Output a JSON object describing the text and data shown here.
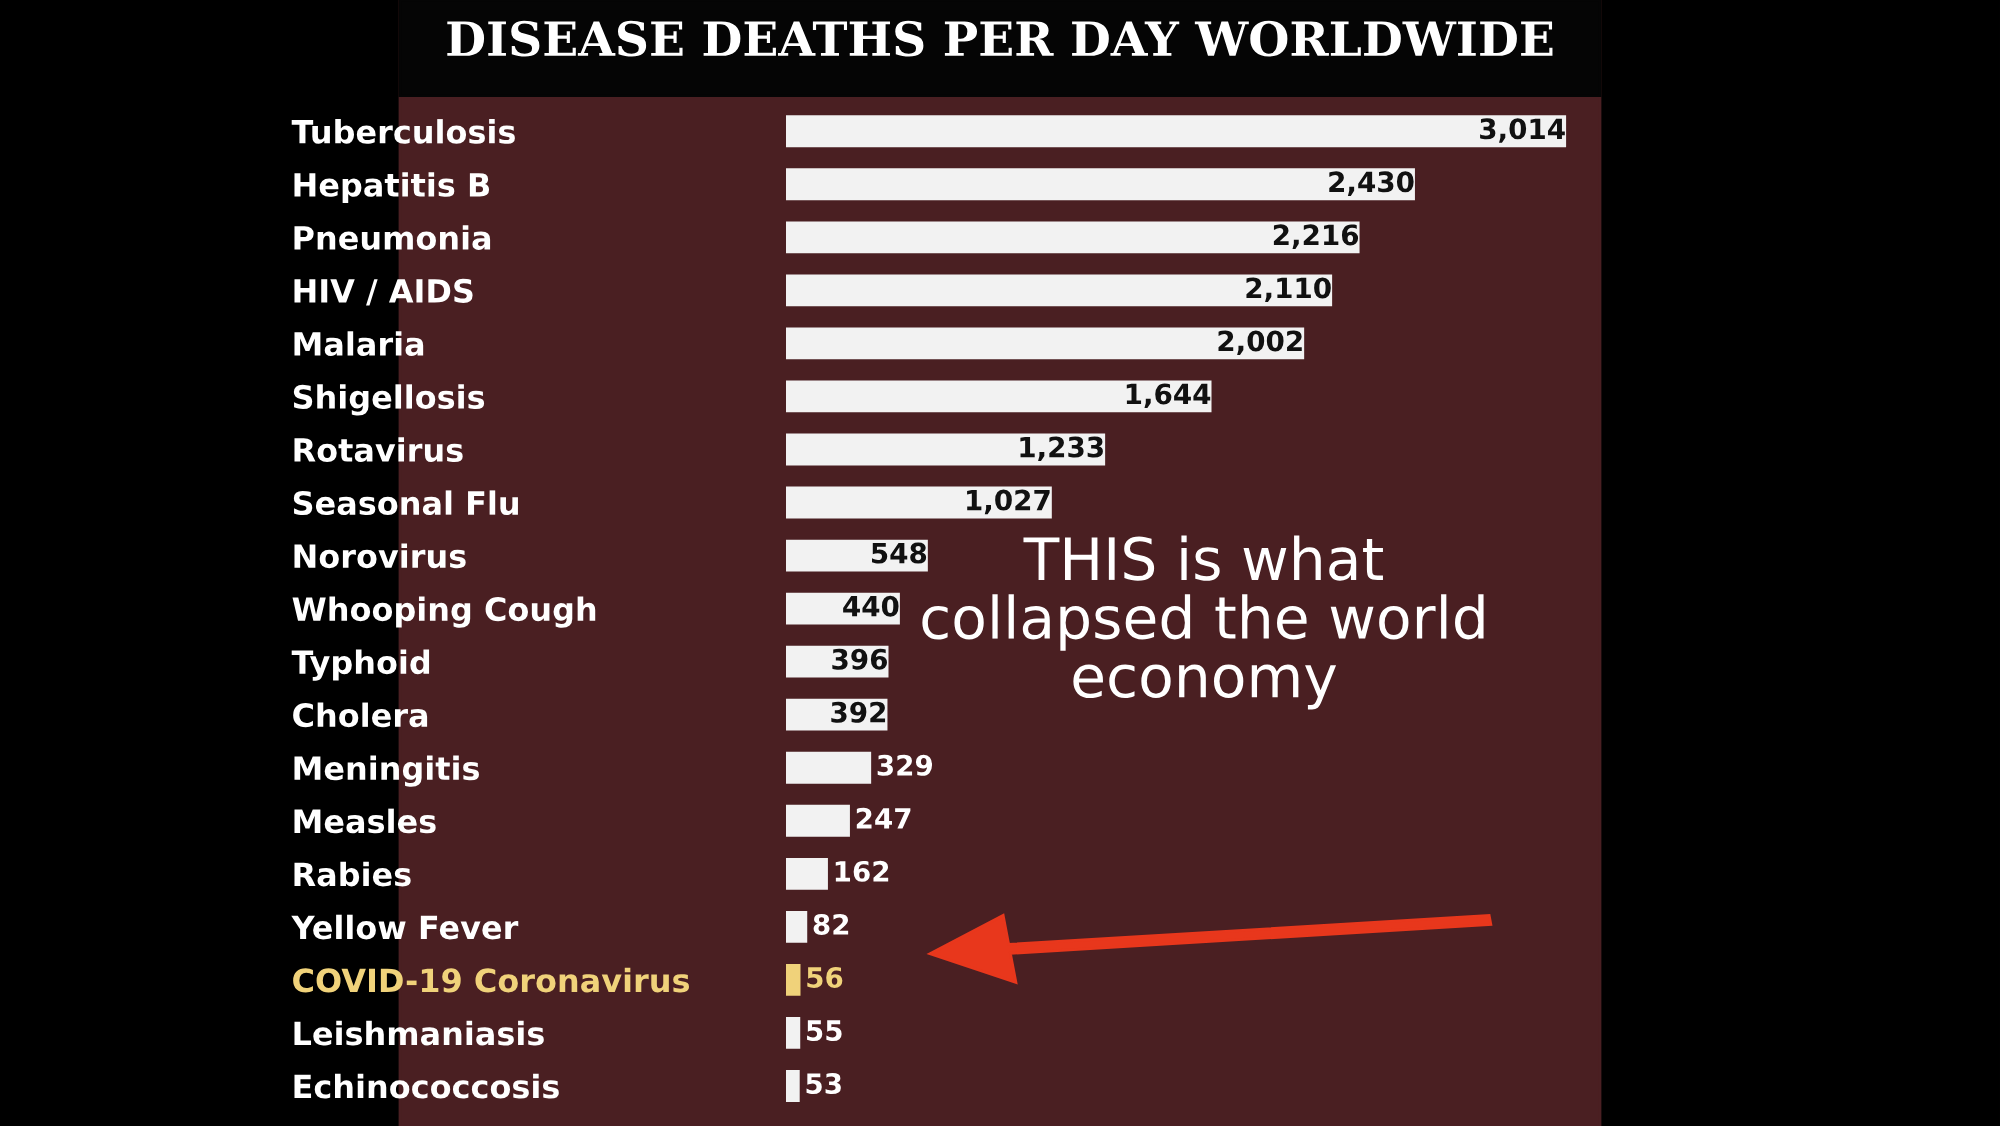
{
  "chart_data": {
    "type": "bar",
    "orientation": "horizontal",
    "title": "DISEASE DEATHS PER DAY WORLDWIDE",
    "categories": [
      "Tuberculosis",
      "Hepatitis B",
      "Pneumonia",
      "HIV / AIDS",
      "Malaria",
      "Shigellosis",
      "Rotavirus",
      "Seasonal Flu",
      "Norovirus",
      "Whooping Cough",
      "Typhoid",
      "Cholera",
      "Meningitis",
      "Measles",
      "Rabies",
      "Yellow Fever",
      "COVID-19 Coronavirus",
      "Leishmaniasis",
      "Echinococcosis"
    ],
    "values": [
      3014,
      2430,
      2216,
      2110,
      2002,
      1644,
      1233,
      1027,
      548,
      440,
      396,
      392,
      329,
      247,
      162,
      82,
      56,
      55,
      53
    ],
    "value_labels": [
      "3,014",
      "2,430",
      "2,216",
      "2,110",
      "2,002",
      "1,644",
      "1,233",
      "1,027",
      "548",
      "440",
      "396",
      "392",
      "329",
      "247",
      "162",
      "82",
      "56",
      "55",
      "53"
    ],
    "colors": [
      "#f2f2f2",
      "#f2f2f2",
      "#f2f2f2",
      "#f2f2f2",
      "#f2f2f2",
      "#f2f2f2",
      "#f2f2f2",
      "#f2f2f2",
      "#f2f2f2",
      "#f2f2f2",
      "#f2f2f2",
      "#f2f2f2",
      "#f2f2f2",
      "#f2f2f2",
      "#f2f2f2",
      "#f2f2f2",
      "#f0d27a",
      "#f2f2f2",
      "#f2f2f2"
    ],
    "annotations": [
      "THIS is what\ncollapsed the world\neconomy"
    ],
    "grid": false,
    "legend": false
  }
}
